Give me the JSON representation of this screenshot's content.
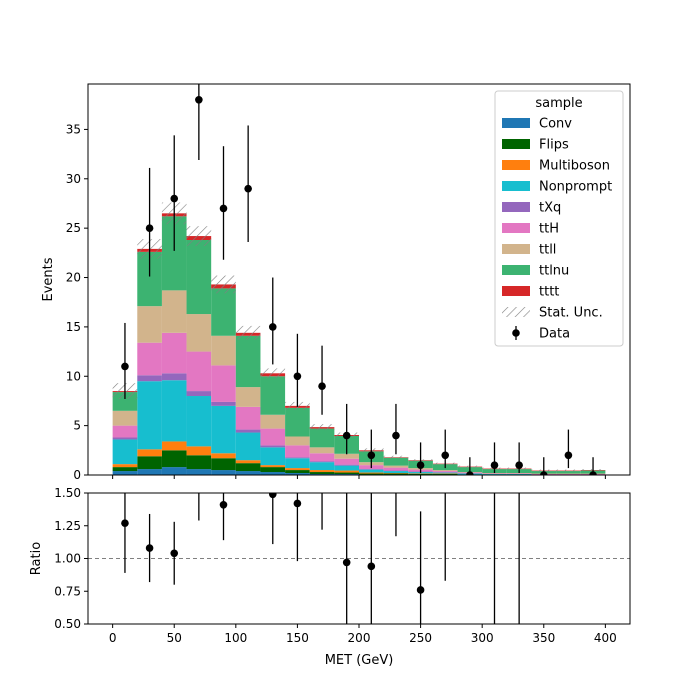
{
  "chart_data": {
    "type": "bar",
    "xlabel": "MET (GeV)",
    "ylabel_top": "Events",
    "ylabel_bottom": "Ratio",
    "xlim": [
      -20,
      420
    ],
    "ylim_top": [
      0,
      39.6
    ],
    "ylim_bottom": [
      0.5,
      1.5
    ],
    "x_ticks": [
      "0",
      "50",
      "100",
      "150",
      "200",
      "250",
      "300",
      "350",
      "400"
    ],
    "y_ticks_top": [
      "0",
      "5",
      "10",
      "15",
      "20",
      "25",
      "30",
      "35"
    ],
    "y_ticks_bottom": [
      "0.50",
      "0.75",
      "1.00",
      "1.25",
      "1.50"
    ],
    "bin_edges": [
      0,
      20,
      40,
      60,
      80,
      100,
      120,
      140,
      160,
      180,
      200,
      220,
      240,
      260,
      280,
      300,
      320,
      340,
      360,
      380,
      400
    ],
    "stack_series": [
      {
        "name": "Conv",
        "color": "#1f77b4",
        "values": [
          0.4,
          0.6,
          0.8,
          0.6,
          0.5,
          0.4,
          0.3,
          0.2,
          0.1,
          0.1,
          0.05,
          0.05,
          0.05,
          0.05,
          0.0,
          0.0,
          0.0,
          0.0,
          0.0,
          0.0
        ]
      },
      {
        "name": "Flips",
        "color": "#006400",
        "values": [
          0.4,
          1.3,
          1.7,
          1.4,
          1.2,
          0.8,
          0.5,
          0.3,
          0.2,
          0.15,
          0.1,
          0.1,
          0.05,
          0.05,
          0.05,
          0.05,
          0.05,
          0.0,
          0.0,
          0.0
        ]
      },
      {
        "name": "Multiboson",
        "color": "#ff7f0e",
        "values": [
          0.3,
          0.7,
          0.9,
          0.9,
          0.5,
          0.3,
          0.2,
          0.2,
          0.2,
          0.2,
          0.1,
          0.05,
          0.05,
          0.05,
          0.0,
          0.0,
          0.0,
          0.0,
          0.0,
          0.0
        ]
      },
      {
        "name": "Nonprompt",
        "color": "#17becf",
        "values": [
          2.5,
          6.9,
          6.2,
          5.1,
          4.8,
          2.8,
          1.8,
          1.0,
          0.8,
          0.5,
          0.3,
          0.2,
          0.15,
          0.1,
          0.1,
          0.05,
          0.05,
          0.05,
          0.05,
          0.05
        ]
      },
      {
        "name": "tXq",
        "color": "#9467bd",
        "values": [
          0.2,
          0.6,
          0.7,
          0.5,
          0.4,
          0.3,
          0.2,
          0.1,
          0.1,
          0.1,
          0.05,
          0.05,
          0.05,
          0.0,
          0.0,
          0.0,
          0.0,
          0.0,
          0.0,
          0.0
        ]
      },
      {
        "name": "ttH",
        "color": "#e377c2",
        "values": [
          1.2,
          3.3,
          4.1,
          4.0,
          3.7,
          2.3,
          1.7,
          1.2,
          0.8,
          0.6,
          0.4,
          0.3,
          0.2,
          0.15,
          0.1,
          0.05,
          0.05,
          0.05,
          0.05,
          0.05
        ]
      },
      {
        "name": "ttll",
        "color": "#d2b48c",
        "values": [
          1.5,
          3.7,
          4.3,
          3.8,
          3.0,
          2.0,
          1.4,
          0.9,
          0.6,
          0.5,
          0.3,
          0.2,
          0.15,
          0.1,
          0.05,
          0.05,
          0.05,
          0.05,
          0.05,
          0.05
        ]
      },
      {
        "name": "ttlnu",
        "color": "#3cb371",
        "values": [
          1.9,
          5.5,
          7.5,
          7.5,
          4.8,
          5.2,
          3.9,
          2.9,
          1.9,
          1.8,
          1.1,
          0.8,
          0.75,
          0.6,
          0.5,
          0.4,
          0.4,
          0.25,
          0.25,
          0.3
        ]
      },
      {
        "name": "tttt",
        "color": "#d62728",
        "values": [
          0.1,
          0.3,
          0.3,
          0.4,
          0.4,
          0.3,
          0.3,
          0.2,
          0.15,
          0.1,
          0.1,
          0.05,
          0.05,
          0.05,
          0.05,
          0.05,
          0.05,
          0.05,
          0.05,
          0.05
        ]
      }
    ],
    "stat_unc": [
      0.8,
      1.0,
      1.1,
      1.0,
      0.9,
      0.7,
      0.5,
      0.4,
      0.3,
      0.25,
      0.2,
      0.15,
      0.1,
      0.1,
      0.1,
      0.1,
      0.1,
      0.1,
      0.1,
      0.1
    ],
    "data": {
      "name": "Data",
      "x": [
        10,
        30,
        50,
        70,
        90,
        110,
        130,
        150,
        170,
        190,
        210,
        230,
        250,
        270,
        290,
        310,
        330,
        350,
        370,
        390
      ],
      "y": [
        11,
        25,
        28,
        38,
        27,
        29,
        15,
        10,
        9,
        4,
        2,
        4,
        1,
        2,
        0,
        1,
        1,
        0,
        2,
        0
      ],
      "yerr_low": [
        3.3,
        4.9,
        5.3,
        6.1,
        5.2,
        5.4,
        3.8,
        3.1,
        2.9,
        1.9,
        1.3,
        1.9,
        0.8,
        1.3,
        0,
        0.8,
        0.8,
        0,
        1.3,
        0
      ],
      "yerr_high": [
        4.4,
        6.1,
        6.4,
        7.2,
        6.3,
        6.4,
        5.0,
        4.3,
        4.1,
        3.2,
        2.6,
        3.2,
        2.3,
        2.6,
        1.8,
        2.3,
        2.3,
        1.8,
        2.6,
        1.8
      ]
    },
    "ratio": {
      "x": [
        10,
        30,
        50,
        90,
        130,
        150,
        190,
        210,
        250
      ],
      "y": [
        1.27,
        1.08,
        1.04,
        1.41,
        1.49,
        1.42,
        0.97,
        0.94,
        0.76
      ],
      "err": [
        0.38,
        0.26,
        0.24,
        0.27,
        0.38,
        0.44,
        0.55,
        0.8,
        0.6
      ],
      "bars_only_x": [
        70,
        170,
        230,
        270,
        310,
        330
      ],
      "bars_only_low": [
        1.29,
        1.22,
        1.17,
        0.83,
        0.5,
        0.5
      ],
      "reference": 1.0
    },
    "legend": {
      "title": "sample",
      "entries": [
        "Conv",
        "Flips",
        "Multiboson",
        "Nonprompt",
        "tXq",
        "ttH",
        "ttll",
        "ttlnu",
        "tttt",
        "Stat. Unc.",
        "Data"
      ],
      "placement": "upper right"
    }
  }
}
